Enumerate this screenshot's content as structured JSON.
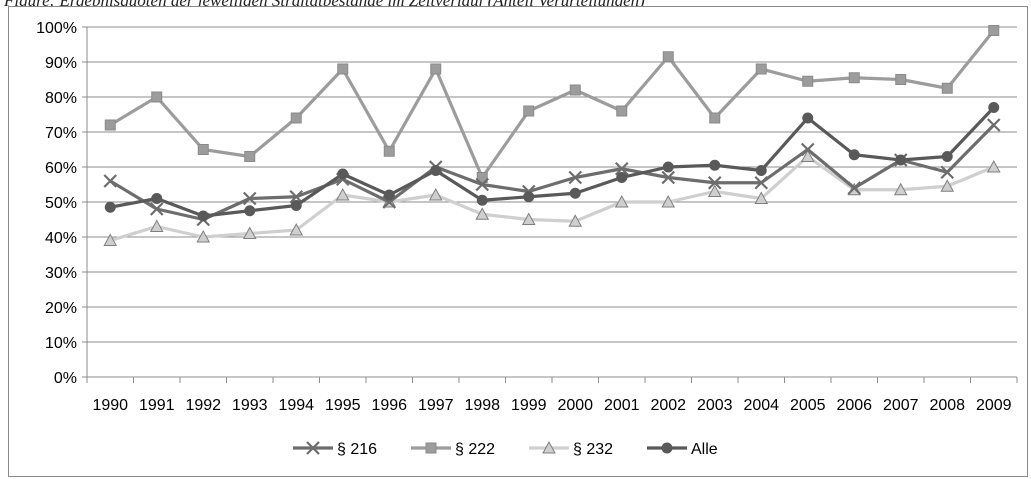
{
  "caption": "Figure: Ergebnisquoten der jeweiligen Straftatbestände im Zeitverlauf (Anteil Verurteilungen)",
  "chart_data": {
    "type": "line",
    "title": "",
    "xlabel": "",
    "ylabel": "",
    "ylim": [
      0,
      1
    ],
    "y_ticks": [
      "0%",
      "10%",
      "20%",
      "30%",
      "40%",
      "50%",
      "60%",
      "70%",
      "80%",
      "90%",
      "100%"
    ],
    "categories": [
      "1990",
      "1991",
      "1992",
      "1993",
      "1994",
      "1995",
      "1996",
      "1997",
      "1998",
      "1999",
      "2000",
      "2001",
      "2002",
      "2003",
      "2004",
      "2005",
      "2006",
      "2007",
      "2008",
      "2009"
    ],
    "legend_position": "bottom",
    "grid": true,
    "series": [
      {
        "name": "§ 216",
        "marker": "x",
        "color": "#6d6d6d",
        "values": [
          0.56,
          0.48,
          0.45,
          0.51,
          0.515,
          0.565,
          0.5,
          0.6,
          0.55,
          0.53,
          0.57,
          0.595,
          0.57,
          0.555,
          0.555,
          0.65,
          0.54,
          0.62,
          0.585,
          0.72
        ]
      },
      {
        "name": "§ 222",
        "marker": "square",
        "color": "#9c9c9c",
        "values": [
          0.72,
          0.8,
          0.65,
          0.63,
          0.74,
          0.88,
          0.645,
          0.88,
          0.57,
          0.76,
          0.82,
          0.76,
          0.915,
          0.74,
          0.88,
          0.845,
          0.855,
          0.85,
          0.825,
          0.99
        ]
      },
      {
        "name": "§ 232",
        "marker": "triangle",
        "color": "#cfcfcf",
        "values": [
          0.39,
          0.43,
          0.4,
          0.41,
          0.42,
          0.52,
          0.5,
          0.52,
          0.465,
          0.45,
          0.445,
          0.5,
          0.5,
          0.53,
          0.51,
          0.63,
          0.535,
          0.535,
          0.545,
          0.6
        ]
      },
      {
        "name": "Alle",
        "marker": "circle",
        "color": "#595959",
        "values": [
          0.485,
          0.51,
          0.46,
          0.475,
          0.49,
          0.58,
          0.52,
          0.59,
          0.505,
          0.515,
          0.525,
          0.57,
          0.6,
          0.605,
          0.59,
          0.74,
          0.635,
          0.62,
          0.63,
          0.77
        ]
      }
    ]
  }
}
